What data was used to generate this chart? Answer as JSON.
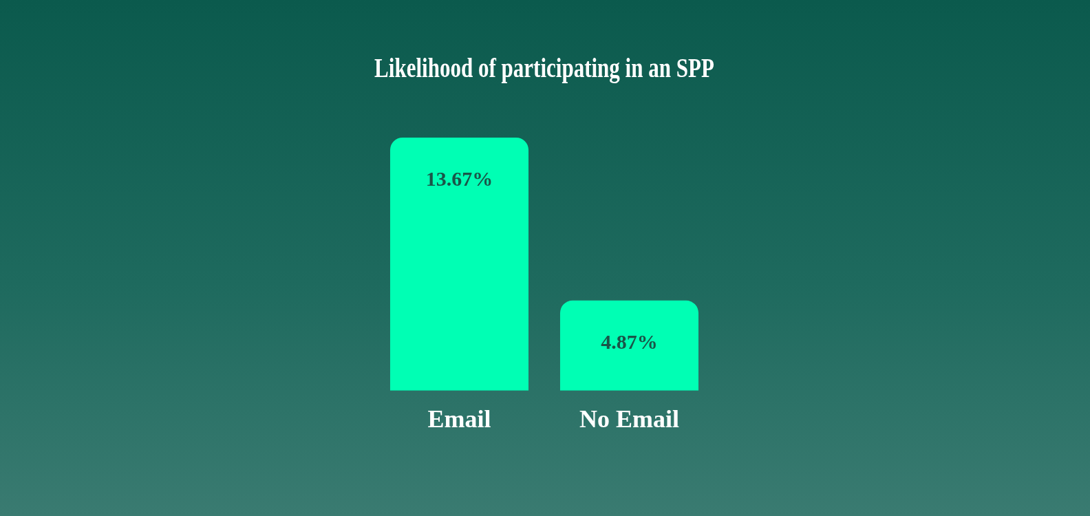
{
  "chart_data": {
    "type": "bar",
    "title": "Likelihood of participating in an SPP",
    "categories": [
      "Email",
      "No Email"
    ],
    "values": [
      13.67,
      4.87
    ],
    "value_labels": [
      "13.67%",
      "4.87%"
    ],
    "color": "#00ffb4",
    "grid": false,
    "legend": false
  }
}
